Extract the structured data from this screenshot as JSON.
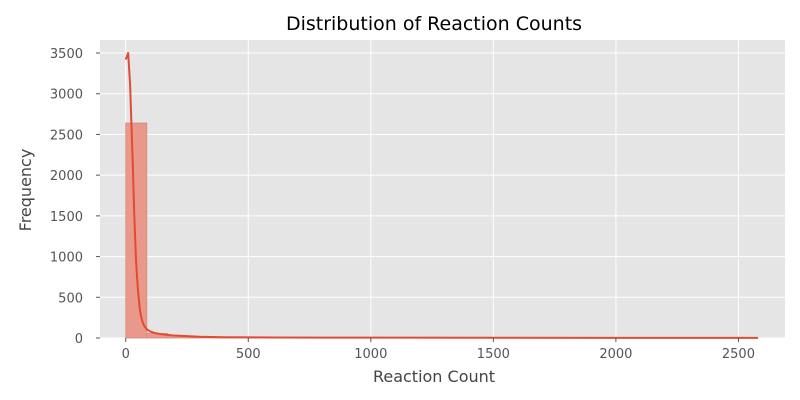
{
  "chart_data": {
    "type": "bar",
    "title": "Distribution of Reaction Counts",
    "xlabel": "Reaction Count",
    "ylabel": "Frequency",
    "xlim": [
      -105,
      2690
    ],
    "ylim": [
      0,
      3660
    ],
    "x_ticks": [
      0,
      500,
      1000,
      1500,
      2000,
      2500
    ],
    "x_tick_labels": [
      "0",
      "500",
      "1000",
      "1500",
      "2000",
      "2500"
    ],
    "y_ticks": [
      0,
      500,
      1000,
      1500,
      2000,
      2500,
      3000,
      3500
    ],
    "y_tick_labels": [
      "0",
      "500",
      "1000",
      "1500",
      "2000",
      "2500",
      "3000",
      "3500"
    ],
    "grid": true,
    "bin_width": 86,
    "bins": [
      {
        "x0": 0,
        "count": 2640
      },
      {
        "x0": 86,
        "count": 55
      },
      {
        "x0": 172,
        "count": 25
      },
      {
        "x0": 258,
        "count": 12
      },
      {
        "x0": 344,
        "count": 8
      },
      {
        "x0": 430,
        "count": 5
      },
      {
        "x0": 516,
        "count": 4
      },
      {
        "x0": 602,
        "count": 3
      },
      {
        "x0": 688,
        "count": 4
      },
      {
        "x0": 774,
        "count": 2
      },
      {
        "x0": 860,
        "count": 2
      },
      {
        "x0": 946,
        "count": 2
      },
      {
        "x0": 1032,
        "count": 1
      },
      {
        "x0": 1118,
        "count": 1
      },
      {
        "x0": 1204,
        "count": 1
      },
      {
        "x0": 1290,
        "count": 1
      },
      {
        "x0": 1376,
        "count": 1
      },
      {
        "x0": 1462,
        "count": 1
      },
      {
        "x0": 1548,
        "count": 1
      },
      {
        "x0": 1634,
        "count": 1
      },
      {
        "x0": 1720,
        "count": 1
      },
      {
        "x0": 1806,
        "count": 1
      },
      {
        "x0": 1892,
        "count": 1
      },
      {
        "x0": 1978,
        "count": 1
      },
      {
        "x0": 2064,
        "count": 1
      },
      {
        "x0": 2150,
        "count": 1
      },
      {
        "x0": 2236,
        "count": 1
      },
      {
        "x0": 2322,
        "count": 1
      },
      {
        "x0": 2408,
        "count": 1
      },
      {
        "x0": 2494,
        "count": 1
      }
    ],
    "kde_line": {
      "x": [
        0,
        10,
        18,
        28,
        35,
        42,
        50,
        58,
        66,
        75,
        85,
        100,
        120,
        150,
        200,
        300,
        400,
        600,
        800,
        1000,
        1500,
        2000,
        2580
      ],
      "y": [
        3420,
        3500,
        3100,
        2200,
        1500,
        950,
        580,
        340,
        220,
        150,
        110,
        80,
        60,
        45,
        30,
        15,
        10,
        6,
        5,
        4,
        3,
        2,
        1
      ]
    },
    "colors": {
      "bar_fill": "#e8998b",
      "bar_stroke": "#d98878",
      "line": "#e24a33",
      "plot_background": "#e5e5e5",
      "grid": "#ffffff"
    }
  }
}
